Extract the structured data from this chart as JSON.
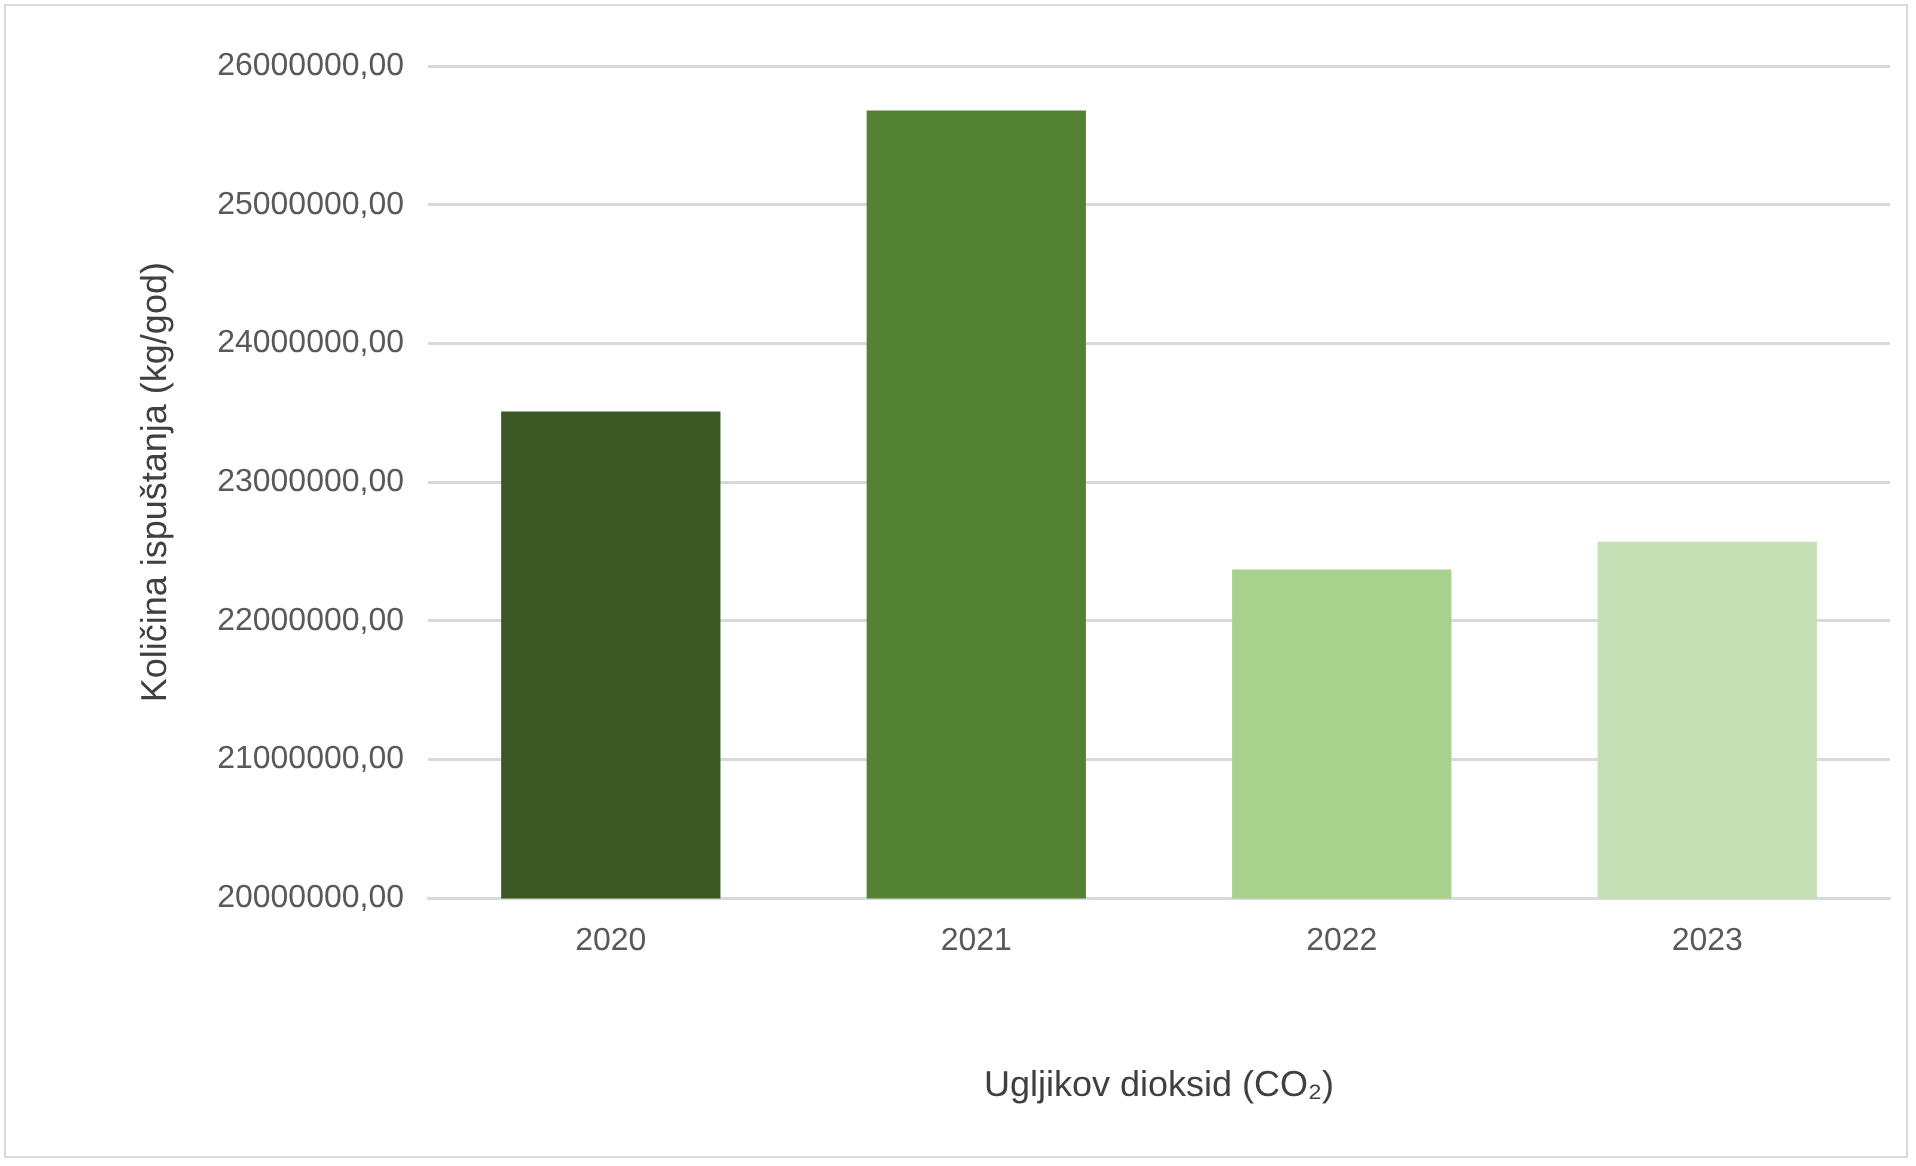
{
  "chart_data": {
    "type": "bar",
    "xlabel": "Ugljikov dioksid (CO₂)",
    "ylabel": "Količina ispuštanja (kg/god)",
    "categories": [
      "2020",
      "2021",
      "2022",
      "2023"
    ],
    "values": [
      23510000,
      25680000,
      22370000,
      22570000
    ],
    "colors": [
      "#3a5724",
      "#548235",
      "#a9d18e",
      "#c5e0b4"
    ],
    "ylim": [
      20000000,
      26000000
    ],
    "yticks": [
      {
        "value": 20000000,
        "label": "20000000,00"
      },
      {
        "value": 21000000,
        "label": "21000000,00"
      },
      {
        "value": 22000000,
        "label": "22000000,00"
      },
      {
        "value": 23000000,
        "label": "23000000,00"
      },
      {
        "value": 24000000,
        "label": "24000000,00"
      },
      {
        "value": 25000000,
        "label": "25000000,00"
      },
      {
        "value": 26000000,
        "label": "26000000,00"
      }
    ],
    "grid": "y",
    "legend": false
  }
}
